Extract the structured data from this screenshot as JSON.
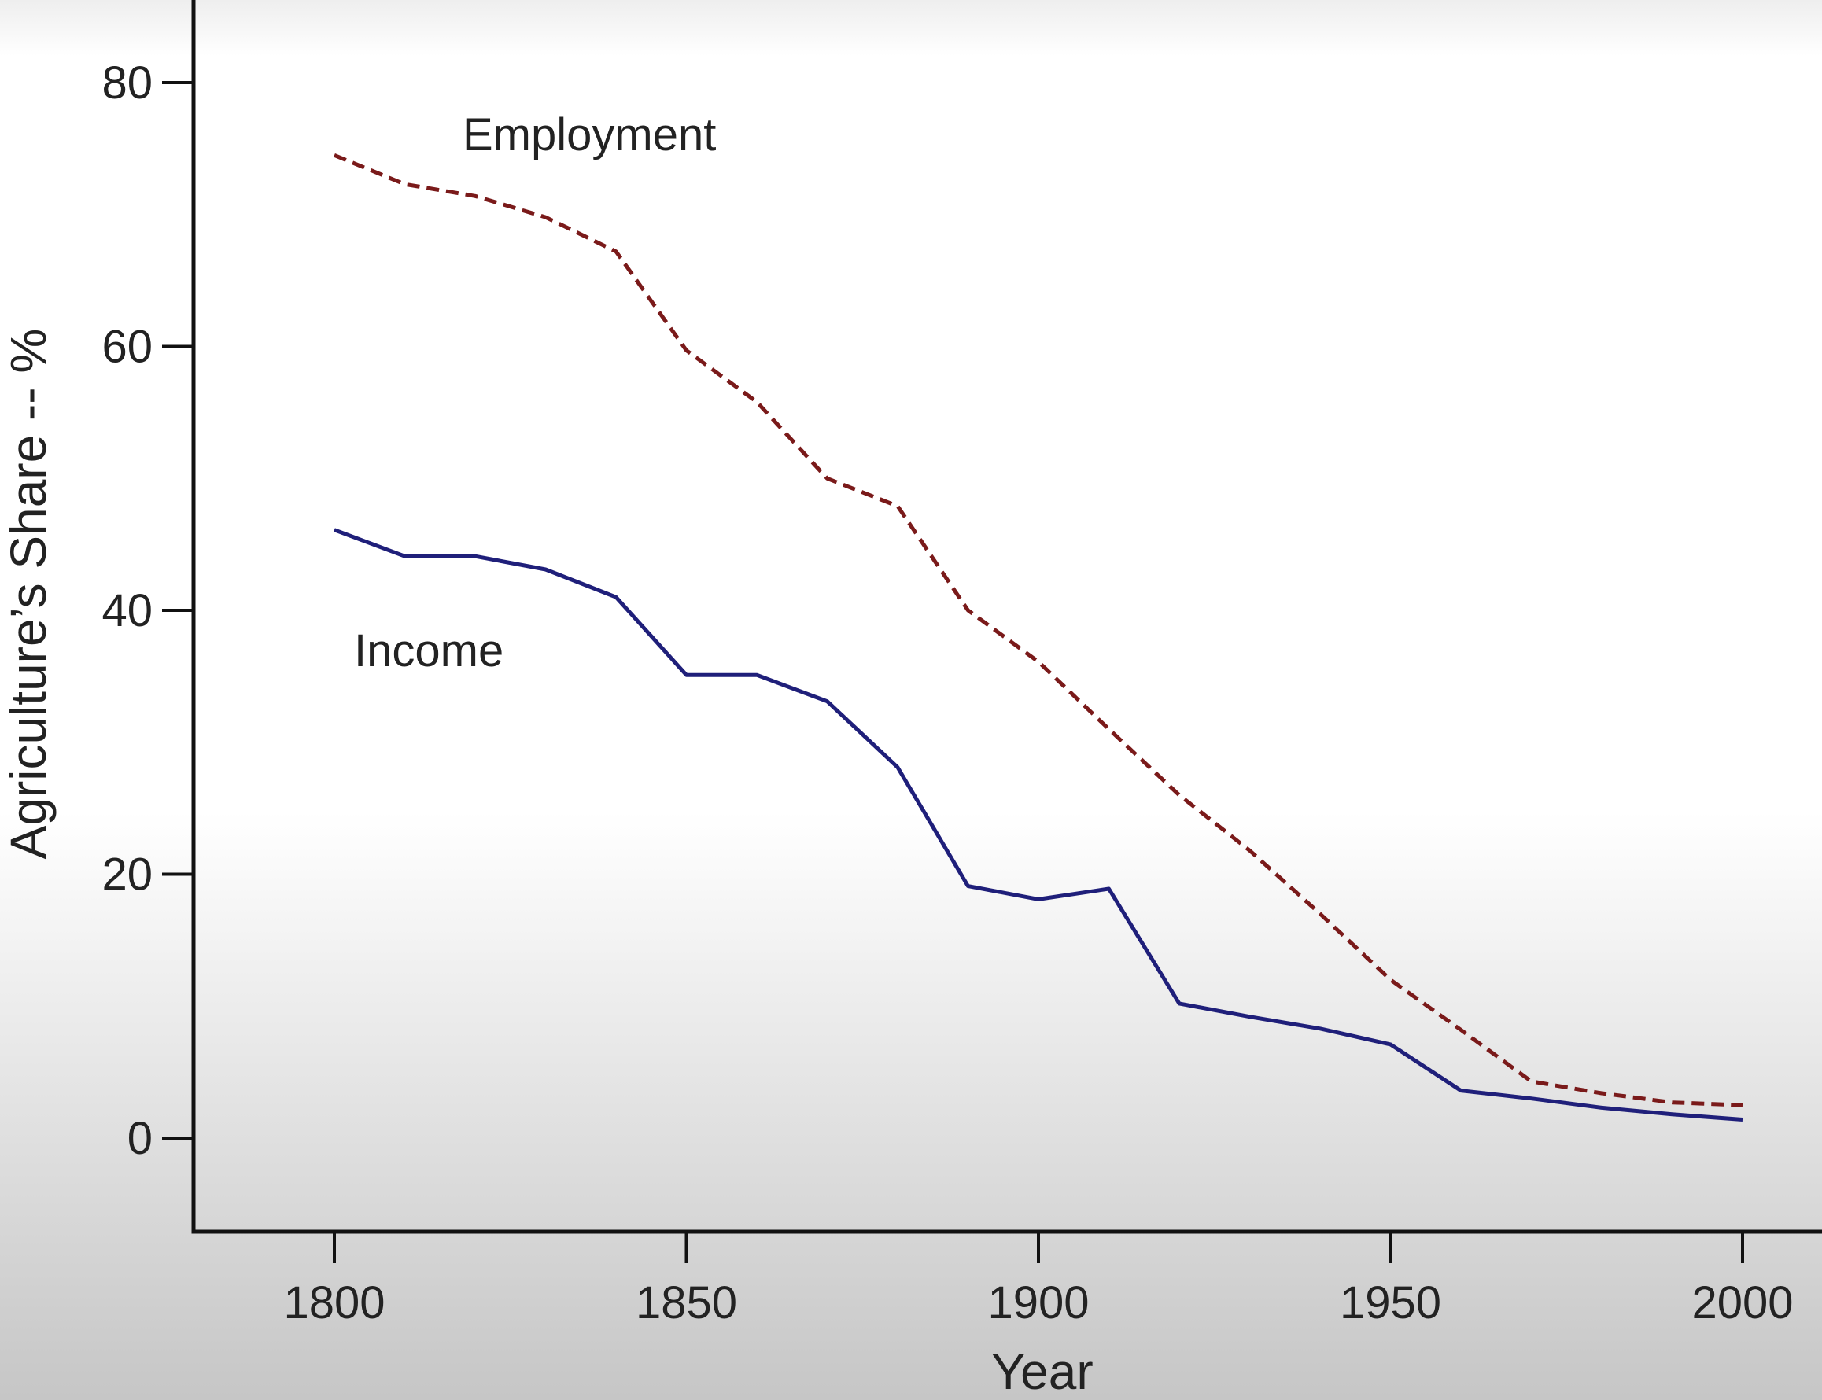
{
  "chart_data": {
    "type": "line",
    "title": "",
    "xlabel": "Year",
    "ylabel": "Agriculture’s Share -- %",
    "xlim": [
      1780,
      2010
    ],
    "ylim": [
      -7,
      86
    ],
    "x_ticks": [
      1800,
      1850,
      1900,
      1950,
      2000
    ],
    "y_ticks": [
      0,
      20,
      40,
      60,
      80
    ],
    "grid": false,
    "series": [
      {
        "name": "Employment",
        "style": "dashed",
        "color": "#7a1a1a",
        "x": [
          1800,
          1810,
          1820,
          1830,
          1840,
          1850,
          1860,
          1870,
          1880,
          1890,
          1900,
          1910,
          1920,
          1930,
          1940,
          1950,
          1960,
          1970,
          1980,
          1990,
          2000
        ],
        "y": [
          74.5,
          72.3,
          71.4,
          69.8,
          67.2,
          59.7,
          55.8,
          50.0,
          47.9,
          40.0,
          36.1,
          31.0,
          26.0,
          21.8,
          17.0,
          12.0,
          8.2,
          4.3,
          3.4,
          2.7,
          2.5
        ]
      },
      {
        "name": "Income",
        "style": "solid",
        "color": "#1f1f7a",
        "x": [
          1800,
          1810,
          1820,
          1830,
          1840,
          1850,
          1860,
          1870,
          1880,
          1890,
          1900,
          1910,
          1920,
          1930,
          1940,
          1950,
          1960,
          1970,
          1980,
          1990,
          2000
        ],
        "y": [
          46.1,
          44.1,
          44.1,
          43.1,
          41.0,
          35.1,
          35.1,
          33.1,
          28.1,
          19.1,
          18.1,
          18.9,
          10.2,
          9.2,
          8.3,
          7.1,
          3.6,
          3.0,
          2.3,
          1.8,
          1.4
        ]
      }
    ]
  }
}
